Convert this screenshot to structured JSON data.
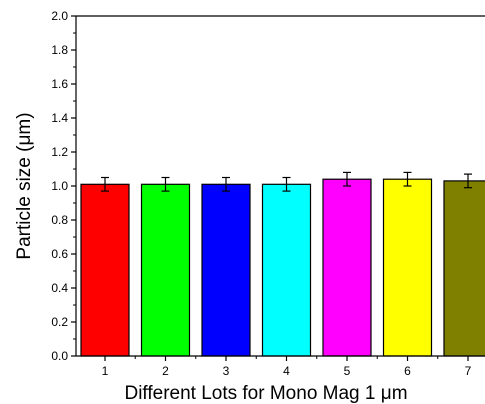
{
  "chart_data": {
    "type": "bar",
    "categories": [
      "1",
      "2",
      "3",
      "4",
      "5",
      "6",
      "7"
    ],
    "values": [
      1.01,
      1.01,
      1.01,
      1.01,
      1.04,
      1.04,
      1.03
    ],
    "errors": [
      0.04,
      0.04,
      0.04,
      0.04,
      0.04,
      0.04,
      0.04
    ],
    "bar_colors": [
      "#ff0000",
      "#00ff00",
      "#0000ff",
      "#00ffff",
      "#ff00ff",
      "#ffff00",
      "#808000"
    ],
    "xlabel": "Different Lots for Mono Mag 1 μm",
    "ylabel": "Particle size (μm)",
    "ylim": [
      0,
      2.0
    ],
    "yticks": [
      "0.0",
      "0.2",
      "0.4",
      "0.6",
      "0.8",
      "1.0",
      "1.2",
      "1.4",
      "1.6",
      "1.8",
      "2.0"
    ],
    "grid": false,
    "legend": "none"
  }
}
